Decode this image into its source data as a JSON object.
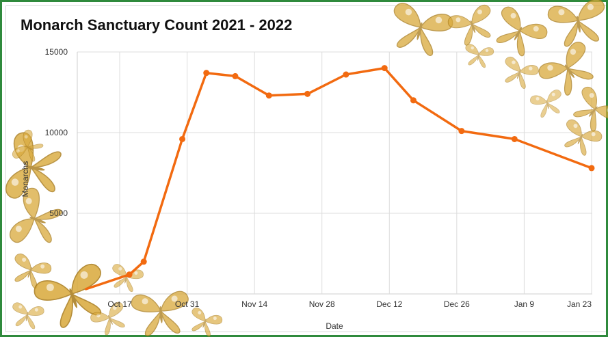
{
  "chart_data": {
    "type": "line",
    "title": "Monarch Sanctuary Count 2021 - 2022",
    "xlabel": "Date",
    "ylabel": "Monarchs",
    "y_ticks": [
      "15000",
      "10000",
      "5000"
    ],
    "x_ticks": [
      {
        "label": "Oct 17",
        "day": 0
      },
      {
        "label": "Oct 31",
        "day": 14
      },
      {
        "label": "Nov 14",
        "day": 28
      },
      {
        "label": "Nov 28",
        "day": 42
      },
      {
        "label": "Dec 12",
        "day": 56
      },
      {
        "label": "Dec 26",
        "day": 70
      },
      {
        "label": "Jan 9",
        "day": 84
      },
      {
        "label": "Jan 23",
        "day": 98
      }
    ],
    "ylim": [
      0,
      15000
    ],
    "grid": true,
    "line_color": "#f26a10",
    "series": [
      {
        "points": [
          {
            "x": "Oct 10",
            "y": 300
          },
          {
            "x": "Oct 19",
            "y": 1200
          },
          {
            "x": "Oct 22",
            "y": 2000
          },
          {
            "x": "Oct 30",
            "y": 9600
          },
          {
            "x": "Nov 4",
            "y": 13700
          },
          {
            "x": "Nov 10",
            "y": 13500
          },
          {
            "x": "Nov 17",
            "y": 12300
          },
          {
            "x": "Nov 25",
            "y": 12400
          },
          {
            "x": "Dec 3",
            "y": 13600
          },
          {
            "x": "Dec 11",
            "y": 14000
          },
          {
            "x": "Dec 17",
            "y": 12000
          },
          {
            "x": "Dec 27",
            "y": 10100
          },
          {
            "x": "Jan 7",
            "y": 9600
          },
          {
            "x": "Jan 23",
            "y": 7800
          }
        ]
      }
    ]
  },
  "decor": {
    "butterfly_color": "#d9a93a",
    "butterfly_color_dark": "#a87a18"
  }
}
